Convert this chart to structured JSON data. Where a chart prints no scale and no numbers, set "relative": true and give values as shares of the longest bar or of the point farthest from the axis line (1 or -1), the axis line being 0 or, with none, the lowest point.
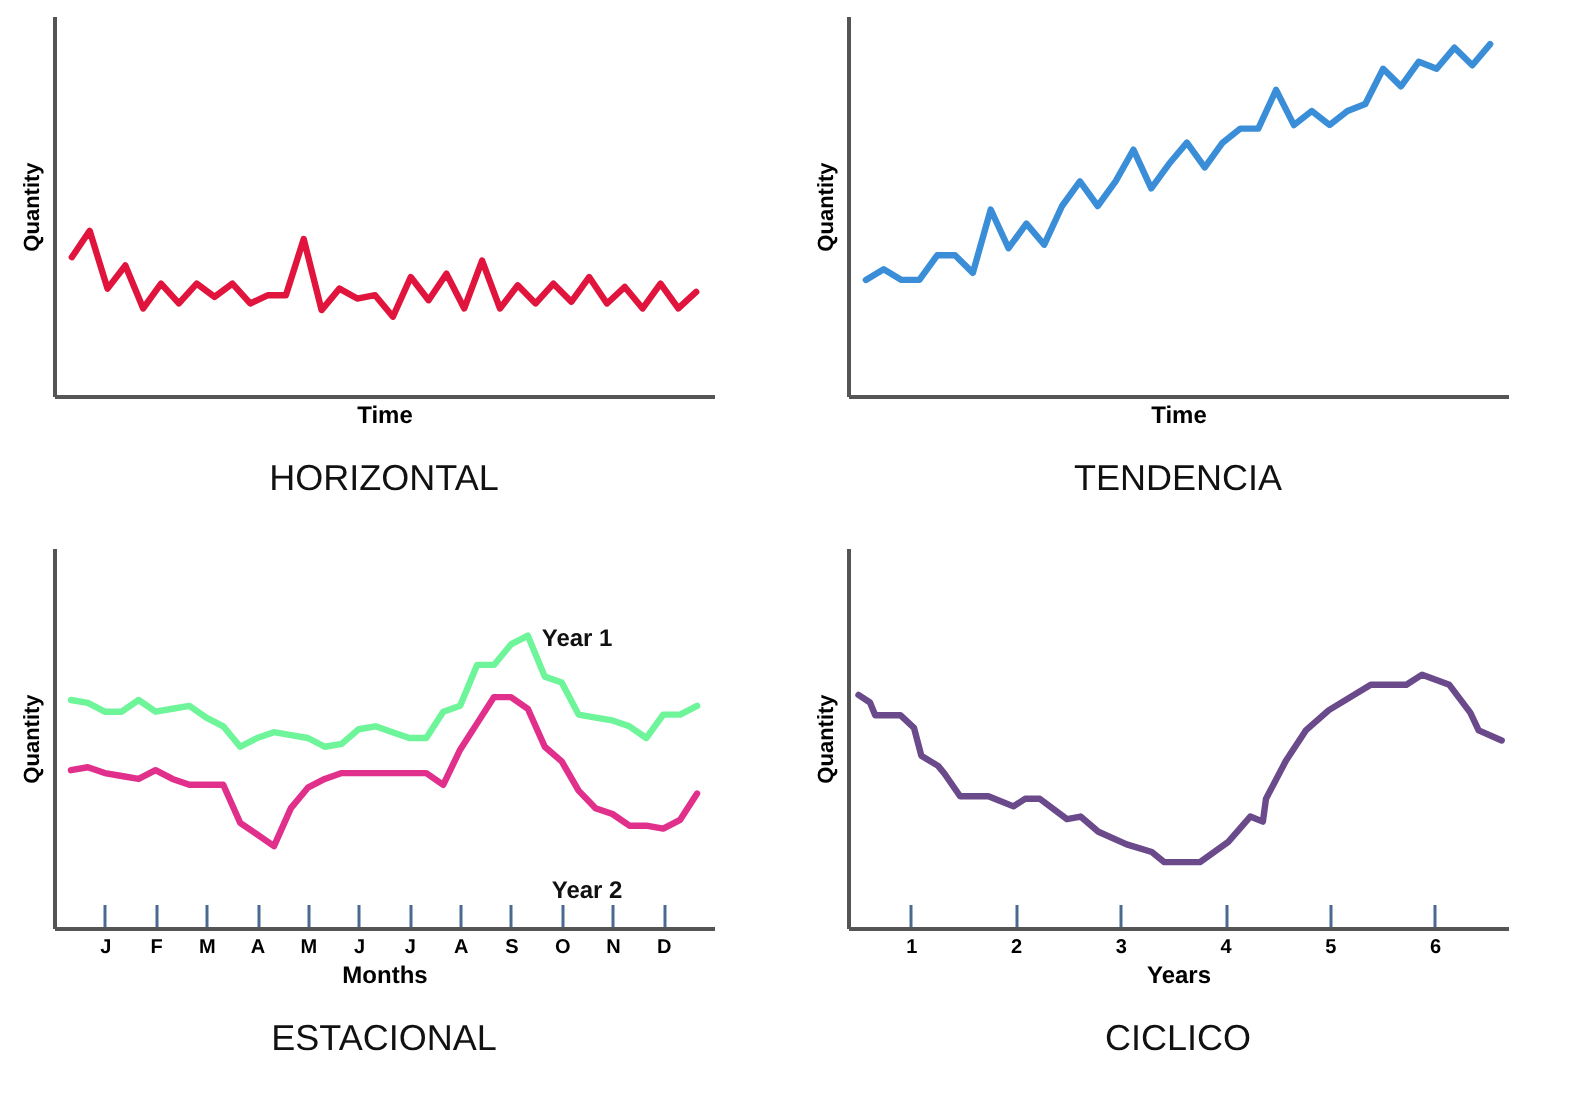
{
  "chart_data": [
    {
      "type": "line",
      "title": "HORIZONTAL",
      "xlabel": "Time",
      "ylabel": "Quantity",
      "relative": true,
      "categories": [
        null,
        null,
        null,
        null,
        null,
        null,
        null,
        null,
        null,
        null,
        null,
        null,
        null,
        null,
        null,
        null,
        null,
        null,
        null,
        null,
        null,
        null,
        null,
        null,
        null,
        null,
        null,
        null,
        null,
        null,
        null,
        null,
        null,
        null,
        null,
        null
      ],
      "series": [
        {
          "color": "#e0143c",
          "values": [
            0.84,
            1,
            0.65,
            0.79,
            0.53,
            0.68,
            0.56,
            0.68,
            0.6,
            0.68,
            0.56,
            0.61,
            0.61,
            0.95,
            0.52,
            0.65,
            0.59,
            0.61,
            0.48,
            0.72,
            0.58,
            0.74,
            0.53,
            0.82,
            0.53,
            0.67,
            0.56,
            0.68,
            0.57,
            0.72,
            0.56,
            0.66,
            0.53,
            0.68,
            0.53,
            0.63
          ]
        }
      ]
    },
    {
      "type": "line",
      "title": "TENDENCIA",
      "xlabel": "Time",
      "ylabel": "Quantity",
      "relative": true,
      "categories": [
        null,
        null,
        null,
        null,
        null,
        null,
        null,
        null,
        null,
        null,
        null,
        null,
        null,
        null,
        null,
        null,
        null,
        null,
        null,
        null,
        null,
        null,
        null,
        null,
        null,
        null,
        null,
        null,
        null,
        null,
        null,
        null,
        null,
        null,
        null,
        null
      ],
      "series": [
        {
          "color": "#3a8ed8",
          "values": [
            0.33,
            0.36,
            0.33,
            0.33,
            0.4,
            0.4,
            0.35,
            0.53,
            0.42,
            0.49,
            0.43,
            0.54,
            0.61,
            0.54,
            0.61,
            0.7,
            0.59,
            0.66,
            0.72,
            0.65,
            0.72,
            0.76,
            0.76,
            0.87,
            0.77,
            0.81,
            0.77,
            0.81,
            0.83,
            0.93,
            0.88,
            0.95,
            0.93,
            0.99,
            0.94,
            1
          ]
        }
      ]
    },
    {
      "type": "line",
      "title": "ESTACIONAL",
      "xlabel": "Months",
      "ylabel": "Quantity",
      "relative": true,
      "categories": [
        null,
        null,
        "J",
        null,
        null,
        "F",
        null,
        null,
        "M",
        null,
        null,
        "A",
        null,
        null,
        "M",
        null,
        null,
        "J",
        null,
        null,
        "J",
        null,
        null,
        "A",
        null,
        null,
        "S",
        null,
        null,
        "O",
        null,
        null,
        "N",
        null,
        null,
        "D",
        null,
        null
      ],
      "series": [
        {
          "name": "Year 1",
          "color": "#6ef59a",
          "values": [
            0.78,
            0.77,
            0.74,
            0.74,
            0.78,
            0.74,
            0.75,
            0.76,
            0.72,
            0.69,
            0.62,
            0.65,
            0.67,
            0.66,
            0.65,
            0.62,
            0.63,
            0.68,
            0.69,
            0.67,
            0.65,
            0.65,
            0.74,
            0.76,
            0.9,
            0.9,
            0.97,
            1,
            0.86,
            0.84,
            0.73,
            0.72,
            0.71,
            0.69,
            0.65,
            0.73,
            0.73,
            0.76
          ]
        },
        {
          "name": "Year 2",
          "color": "#e0308c",
          "values": [
            0.54,
            0.55,
            0.53,
            0.52,
            0.51,
            0.54,
            0.51,
            0.49,
            0.49,
            0.49,
            0.36,
            0.32,
            0.28,
            0.41,
            0.48,
            0.51,
            0.53,
            0.53,
            0.53,
            0.53,
            0.53,
            0.53,
            0.49,
            0.61,
            0.7,
            0.79,
            0.79,
            0.75,
            0.62,
            0.57,
            0.47,
            0.41,
            0.39,
            0.35,
            0.35,
            0.34,
            0.37,
            0.46
          ]
        }
      ]
    },
    {
      "type": "line",
      "title": "CICLICO",
      "xlabel": "Years",
      "ylabel": "Quantity",
      "relative": true,
      "xlim": [
        0.4,
        6.7
      ],
      "xticks": [
        1,
        2,
        3,
        4,
        5,
        6
      ],
      "x": [
        0.5,
        0.61,
        0.66,
        0.9,
        1.03,
        1.1,
        1.26,
        1.32,
        1.47,
        1.74,
        1.98,
        2.09,
        2.23,
        2.49,
        2.62,
        2.79,
        3.06,
        3.3,
        3.42,
        3.76,
        4.03,
        4.24,
        4.36,
        4.39,
        4.58,
        4.77,
        4.99,
        5.39,
        5.73,
        5.88,
        6.14,
        6.34,
        6.42,
        6.64
      ],
      "series": [
        {
          "color": "#6a4a8a",
          "values": [
            0.92,
            0.89,
            0.84,
            0.84,
            0.79,
            0.68,
            0.64,
            0.61,
            0.52,
            0.52,
            0.48,
            0.51,
            0.51,
            0.43,
            0.44,
            0.38,
            0.33,
            0.3,
            0.26,
            0.26,
            0.34,
            0.44,
            0.42,
            0.51,
            0.66,
            0.78,
            0.86,
            0.96,
            0.96,
            1,
            0.96,
            0.85,
            0.78,
            0.74
          ]
        }
      ]
    }
  ]
}
